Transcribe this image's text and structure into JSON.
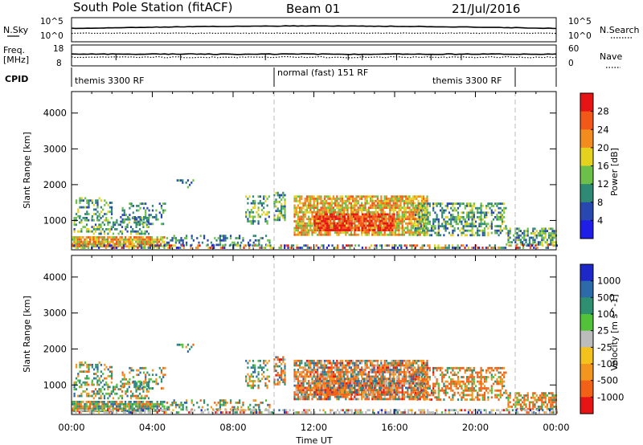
{
  "header": {
    "station": "South Pole Station (fitACF)",
    "beam": "Beam 01",
    "date": "21/Jul/2016"
  },
  "noise_panel": {
    "left_label": "N.Sky",
    "right_label": "N.Search",
    "left_ticks": [
      "10^5",
      "10^0"
    ],
    "right_ticks": [
      "10^5",
      "10^0"
    ]
  },
  "freq_panel": {
    "left_label_line1": "Freq.",
    "left_label_line2": "[MHz]",
    "left_ticks": [
      "18",
      "8"
    ],
    "right_label": "Nave",
    "right_ticks": [
      "60",
      "0"
    ]
  },
  "cpid": {
    "label": "CPID",
    "segments": [
      "themis 3300 RF",
      "normal (fast) 151 RF",
      "themis 3300 RF"
    ]
  },
  "chart_data": [
    {
      "type": "heatmap",
      "name": "power",
      "ylabel": "Slant Range [km]",
      "xlabel": "Time UT",
      "y_ticks": [
        "1000",
        "2000",
        "3000",
        "4000"
      ],
      "x_ticks": [
        "00:00",
        "04:00",
        "08:00",
        "12:00",
        "16:00",
        "20:00",
        "00:00"
      ],
      "ylim": [
        180,
        4600
      ],
      "xlim_hours": [
        0,
        24
      ],
      "mode_change_hours": [
        10,
        22
      ],
      "colorbar": {
        "label": "Power [dB]",
        "ticks": [
          "4",
          "8",
          "12",
          "16",
          "20",
          "24",
          "28"
        ],
        "colors": [
          "#1e1ee6",
          "#2848b0",
          "#2e8a74",
          "#6cc04a",
          "#e4d21e",
          "#f28c1e",
          "#f25818",
          "#e61414"
        ]
      }
    },
    {
      "type": "heatmap",
      "name": "velocity",
      "ylabel": "Slant Range [km]",
      "xlabel": "Time UT",
      "y_ticks": [
        "1000",
        "2000",
        "3000",
        "4000"
      ],
      "x_ticks": [
        "00:00",
        "04:00",
        "08:00",
        "12:00",
        "16:00",
        "20:00",
        "00:00"
      ],
      "ylim": [
        180,
        4600
      ],
      "xlim_hours": [
        0,
        24
      ],
      "mode_change_hours": [
        10,
        22
      ],
      "colorbar": {
        "label": "Velocity [m s^-1]",
        "ticks": [
          "1000",
          "500",
          "100",
          "25",
          "-25",
          "-100",
          "-500",
          "-1000"
        ],
        "colors": [
          "#1e28c8",
          "#2c6aa8",
          "#2e9070",
          "#52c238",
          "#bcbcbc",
          "#f4c21c",
          "#f2961e",
          "#f26216",
          "#e61414"
        ]
      }
    }
  ]
}
